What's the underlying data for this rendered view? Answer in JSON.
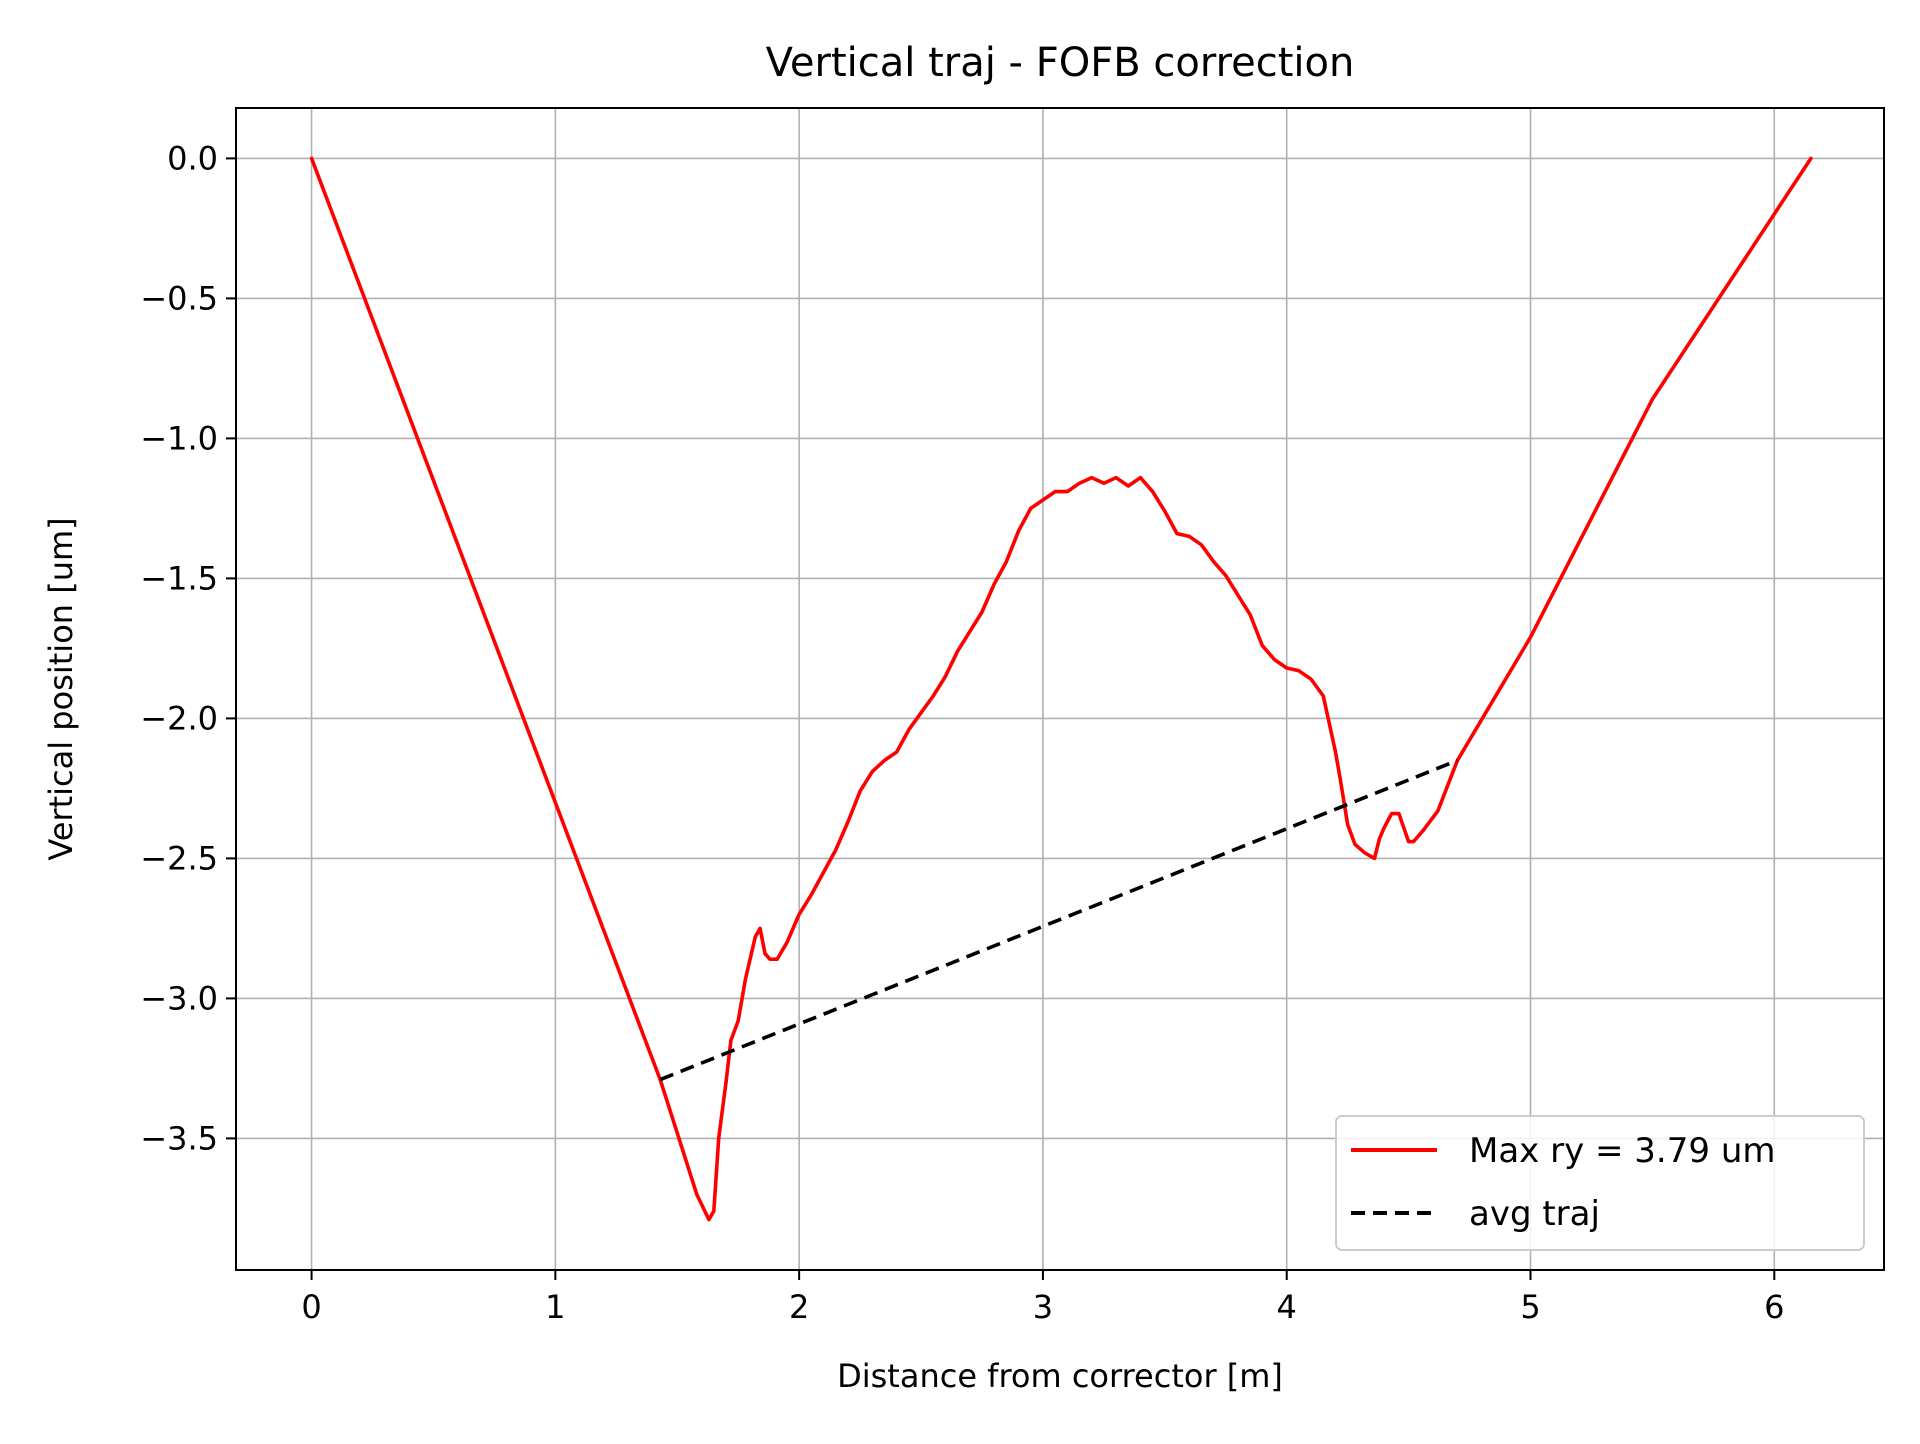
{
  "chart_data": {
    "type": "line",
    "title": "Vertical traj - FOFB correction",
    "xlabel": "Distance from corrector [m]",
    "ylabel": "Vertical position [um]",
    "xlim": [
      -0.31,
      6.45
    ],
    "ylim": [
      -3.97,
      0.18
    ],
    "xticks": [
      0,
      1,
      2,
      3,
      4,
      5,
      6
    ],
    "xtick_labels": [
      "0",
      "1",
      "2",
      "3",
      "4",
      "5",
      "6"
    ],
    "yticks": [
      0.0,
      -0.5,
      -1.0,
      -1.5,
      -2.0,
      -2.5,
      -3.0,
      -3.5
    ],
    "ytick_labels": [
      "0.0",
      "−0.5",
      "−1.0",
      "−1.5",
      "−2.0",
      "−2.5",
      "−3.0",
      "−3.5"
    ],
    "grid": true,
    "legend_position": "lower right",
    "series": [
      {
        "name": "Max ry = 3.79 um",
        "color": "#ff0000",
        "style": "solid",
        "x": [
          0,
          1.43,
          1.58,
          1.63,
          1.65,
          1.67,
          1.7,
          1.72,
          1.75,
          1.78,
          1.82,
          1.84,
          1.86,
          1.88,
          1.91,
          1.95,
          2.0,
          2.05,
          2.1,
          2.15,
          2.2,
          2.25,
          2.3,
          2.35,
          2.4,
          2.45,
          2.5,
          2.55,
          2.6,
          2.65,
          2.7,
          2.75,
          2.8,
          2.85,
          2.9,
          2.95,
          3.0,
          3.05,
          3.1,
          3.15,
          3.2,
          3.25,
          3.3,
          3.35,
          3.4,
          3.45,
          3.5,
          3.55,
          3.6,
          3.65,
          3.7,
          3.75,
          3.8,
          3.85,
          3.9,
          3.95,
          4.0,
          4.05,
          4.1,
          4.15,
          4.2,
          4.22,
          4.25,
          4.28,
          4.32,
          4.36,
          4.38,
          4.4,
          4.43,
          4.46,
          4.48,
          4.5,
          4.52,
          4.56,
          4.62,
          4.7,
          5.0,
          5.5,
          6.15
        ],
        "y": [
          0,
          -3.29,
          -3.7,
          -3.79,
          -3.76,
          -3.5,
          -3.3,
          -3.15,
          -3.08,
          -2.93,
          -2.78,
          -2.75,
          -2.84,
          -2.86,
          -2.86,
          -2.8,
          -2.7,
          -2.63,
          -2.55,
          -2.47,
          -2.37,
          -2.26,
          -2.19,
          -2.15,
          -2.12,
          -2.04,
          -1.98,
          -1.92,
          -1.85,
          -1.76,
          -1.69,
          -1.62,
          -1.52,
          -1.44,
          -1.33,
          -1.25,
          -1.22,
          -1.19,
          -1.19,
          -1.16,
          -1.14,
          -1.16,
          -1.14,
          -1.17,
          -1.14,
          -1.19,
          -1.26,
          -1.34,
          -1.35,
          -1.38,
          -1.44,
          -1.49,
          -1.56,
          -1.63,
          -1.74,
          -1.79,
          -1.82,
          -1.83,
          -1.86,
          -1.92,
          -2.12,
          -2.22,
          -2.38,
          -2.45,
          -2.48,
          -2.5,
          -2.43,
          -2.39,
          -2.34,
          -2.34,
          -2.39,
          -2.44,
          -2.44,
          -2.4,
          -2.33,
          -2.15,
          -1.71,
          -0.86,
          0
        ]
      },
      {
        "name": "avg traj",
        "color": "#000000",
        "style": "dashed",
        "x": [
          1.43,
          4.7
        ],
        "y": [
          -3.29,
          -2.15
        ]
      }
    ]
  }
}
